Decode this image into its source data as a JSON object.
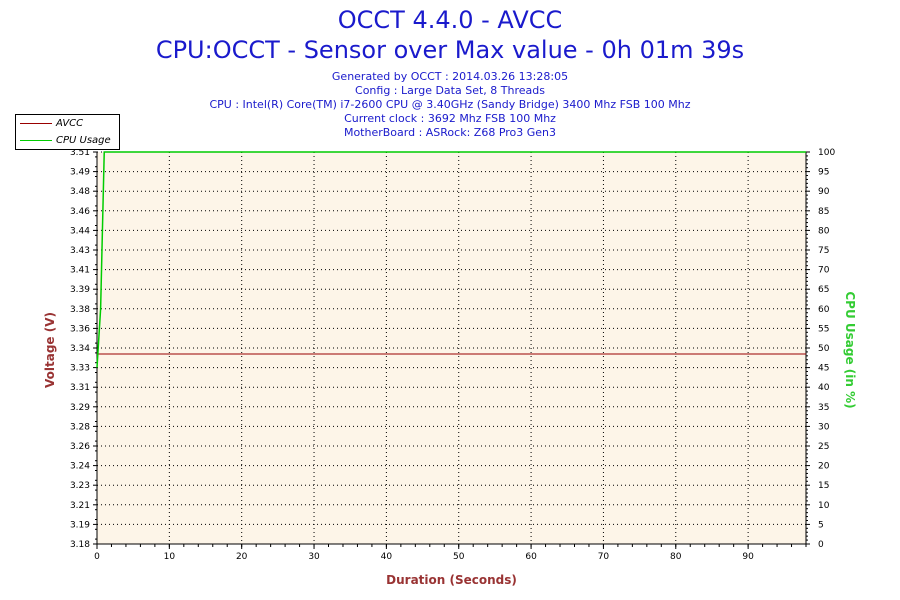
{
  "header": {
    "title": "OCCT 4.4.0 - AVCC",
    "subtitle": "CPU:OCCT - Sensor over Max value - 0h 01m 39s",
    "info_lines": [
      "Generated by OCCT : 2014.03.26 13:28:05",
      "Config : Large Data Set, 8 Threads",
      "CPU : Intel(R) Core(TM) i7-2600 CPU @ 3.40GHz (Sandy Bridge) 3400 Mhz FSB 100 Mhz",
      "Current clock : 3692 Mhz FSB 100 Mhz",
      "MotherBoard : ASRock: Z68 Pro3 Gen3"
    ]
  },
  "colors": {
    "title": "#1a1acc",
    "voltage_axis": "#993333",
    "cpu_axis": "#33cc33",
    "avcc_line": "#990000",
    "cpu_line": "#00cc00",
    "plot_bg": "#fdf5e8",
    "grid": "#000000"
  },
  "chart_data": {
    "type": "line",
    "xlabel": "Duration (Seconds)",
    "ylabel": "Voltage (V)",
    "y2label": "CPU Usage (in %)",
    "xlim": [
      0,
      98
    ],
    "ylim": [
      3.18,
      3.51
    ],
    "y2lim": [
      0,
      100
    ],
    "grid": true,
    "legend_position": "top-left",
    "x_ticks": [
      "0",
      "10",
      "20",
      "30",
      "40",
      "50",
      "60",
      "70",
      "80",
      "90"
    ],
    "y_ticks": [
      "3.18",
      "3.19",
      "3.21",
      "3.23",
      "3.24",
      "3.26",
      "3.28",
      "3.29",
      "3.31",
      "3.33",
      "3.34",
      "3.36",
      "3.38",
      "3.39",
      "3.41",
      "3.43",
      "3.44",
      "3.46",
      "3.48",
      "3.49",
      "3.51"
    ],
    "y2_ticks": [
      "0",
      "5",
      "10",
      "15",
      "20",
      "25",
      "30",
      "35",
      "40",
      "45",
      "50",
      "55",
      "60",
      "65",
      "70",
      "75",
      "80",
      "85",
      "90",
      "95",
      "100"
    ],
    "series": [
      {
        "name": "AVCC",
        "axis": "left",
        "x": [
          0,
          98
        ],
        "values": [
          3.34,
          3.34
        ]
      },
      {
        "name": "CPU Usage",
        "axis": "right",
        "x": [
          0,
          0.5,
          1,
          98
        ],
        "values": [
          45,
          60,
          100,
          100
        ]
      }
    ]
  }
}
